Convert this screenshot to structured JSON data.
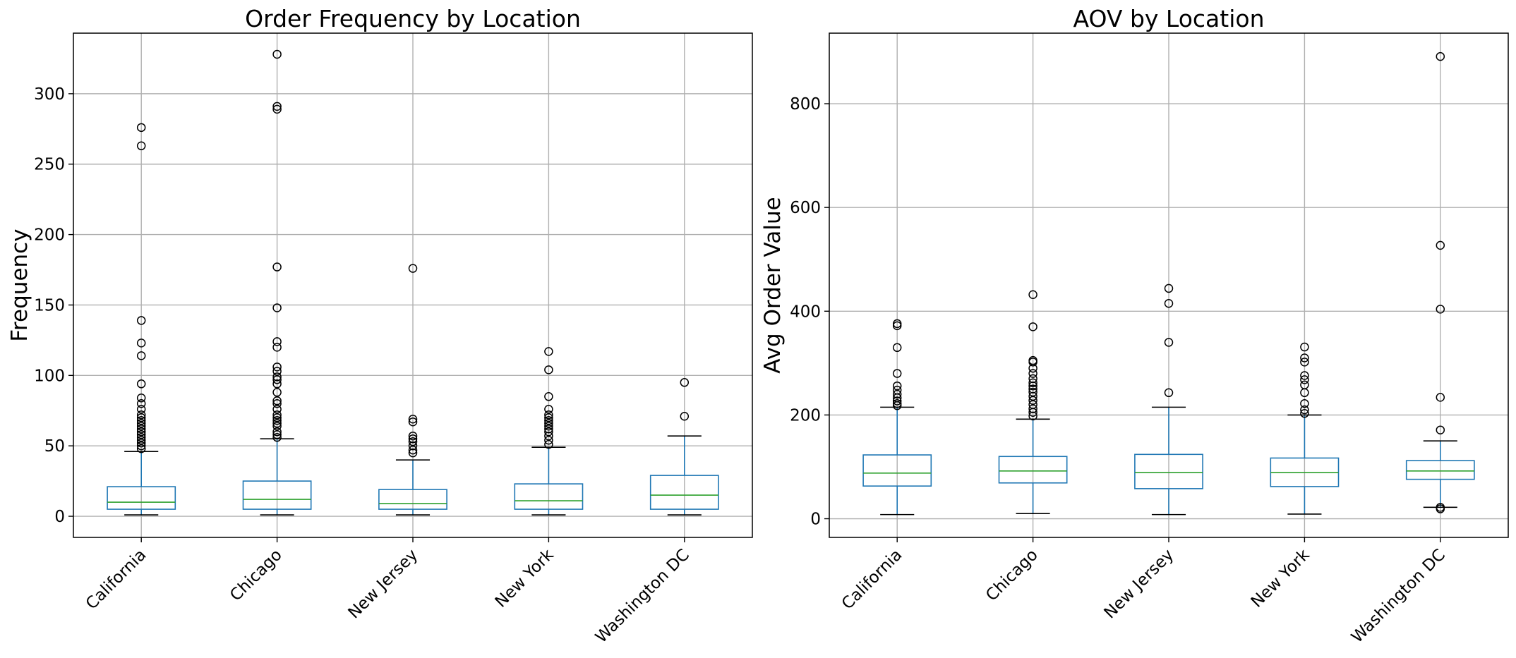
{
  "colors": {
    "box": "#1f77b4",
    "median": "#2ca02c",
    "flier": "#000000",
    "grid": "#b0b0b0"
  },
  "chart_data": [
    {
      "type": "box",
      "title": "Order Frequency by Location",
      "xlabel": "",
      "ylabel": "Frequency",
      "categories": [
        "California",
        "Chicago",
        "New Jersey",
        "New York",
        "Washington DC"
      ],
      "yticks": [
        "0",
        "50",
        "100",
        "150",
        "200",
        "250",
        "300"
      ],
      "ytick_values": [
        0,
        50,
        100,
        150,
        200,
        250,
        300
      ],
      "ylim": [
        -15,
        343
      ],
      "grid": true,
      "boxes": [
        {
          "whislo": 1,
          "q1": 5,
          "med": 10,
          "q3": 21,
          "whishi": 46,
          "fliers": [
            48,
            50,
            52,
            54,
            56,
            58,
            60,
            62,
            64,
            66,
            68,
            70,
            72,
            76,
            80,
            84,
            94,
            114,
            123,
            139,
            263,
            276
          ]
        },
        {
          "whislo": 1,
          "q1": 5,
          "med": 12,
          "q3": 25,
          "whishi": 55,
          "fliers": [
            56,
            58,
            60,
            64,
            66,
            68,
            70,
            72,
            76,
            80,
            82,
            88,
            94,
            97,
            99,
            103,
            106,
            120,
            124,
            148,
            177,
            289,
            291,
            328
          ]
        },
        {
          "whislo": 1,
          "q1": 5,
          "med": 9,
          "q3": 19,
          "whishi": 40,
          "fliers": [
            45,
            47,
            50,
            53,
            55,
            57,
            67,
            69,
            176
          ]
        },
        {
          "whislo": 1,
          "q1": 5,
          "med": 11,
          "q3": 23,
          "whishi": 49,
          "fliers": [
            51,
            54,
            57,
            60,
            62,
            64,
            66,
            68,
            70,
            72,
            76,
            85,
            104,
            117
          ]
        },
        {
          "whislo": 1,
          "q1": 5,
          "med": 15,
          "q3": 29,
          "whishi": 57,
          "fliers": [
            71,
            95
          ]
        }
      ]
    },
    {
      "type": "box",
      "title": "AOV by Location",
      "xlabel": "",
      "ylabel": "Avg Order Value",
      "categories": [
        "California",
        "Chicago",
        "New Jersey",
        "New York",
        "Washington DC"
      ],
      "yticks": [
        "0",
        "200",
        "400",
        "600",
        "800"
      ],
      "ytick_values": [
        0,
        200,
        400,
        600,
        800
      ],
      "ylim": [
        -36,
        936
      ],
      "grid": true,
      "boxes": [
        {
          "whislo": 8,
          "q1": 63,
          "med": 88,
          "q3": 123,
          "whishi": 215,
          "fliers": [
            218,
            222,
            227,
            233,
            240,
            248,
            256,
            280,
            330,
            372,
            376
          ]
        },
        {
          "whislo": 10,
          "q1": 69,
          "med": 92,
          "q3": 120,
          "whishi": 192,
          "fliers": [
            198,
            205,
            212,
            220,
            228,
            236,
            244,
            250,
            256,
            262,
            270,
            280,
            290,
            302,
            305,
            370,
            432
          ]
        },
        {
          "whislo": 8,
          "q1": 58,
          "med": 89,
          "q3": 124,
          "whishi": 215,
          "fliers": [
            243,
            340,
            415,
            444
          ]
        },
        {
          "whislo": 9,
          "q1": 62,
          "med": 89,
          "q3": 117,
          "whishi": 200,
          "fliers": [
            203,
            210,
            222,
            243,
            258,
            268,
            276,
            302,
            310,
            331
          ]
        },
        {
          "whislo": 22,
          "q1": 76,
          "med": 92,
          "q3": 112,
          "whishi": 150,
          "fliers": [
            19,
            22,
            171,
            234,
            404,
            527,
            891
          ]
        }
      ]
    }
  ]
}
